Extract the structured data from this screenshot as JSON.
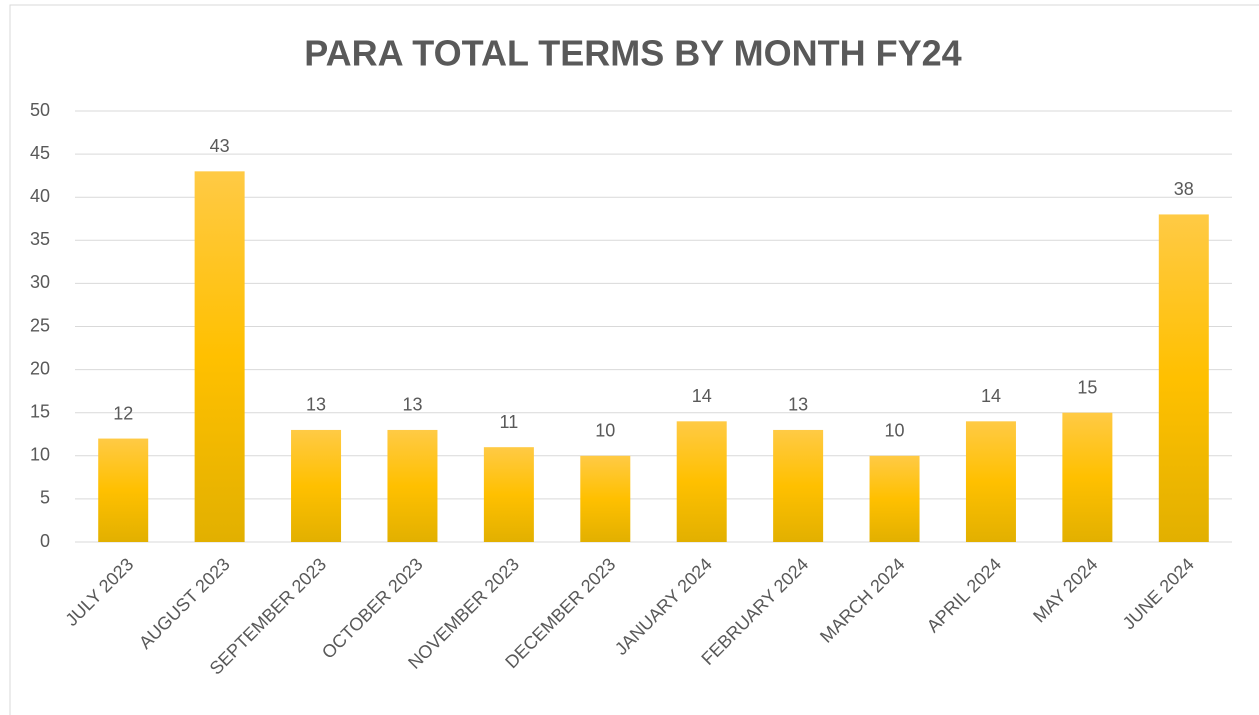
{
  "chart_data": {
    "type": "bar",
    "title": "PARA TOTAL TERMS BY MONTH FY24",
    "categories": [
      "JULY 2023",
      "AUGUST 2023",
      "SEPTEMBER 2023",
      "OCTOBER 2023",
      "NOVEMBER 2023",
      "DECEMBER 2023",
      "JANUARY 2024",
      "FEBRUARY 2024",
      "MARCH 2024",
      "APRIL 2024",
      "MAY 2024",
      "JUNE 2024"
    ],
    "values": [
      12,
      43,
      13,
      13,
      11,
      10,
      14,
      13,
      10,
      14,
      15,
      38
    ],
    "color": "#ffc000",
    "ylim": [
      0,
      50
    ],
    "yticks": [
      0,
      5,
      10,
      15,
      20,
      25,
      30,
      35,
      40,
      45,
      50
    ],
    "grid": true
  }
}
